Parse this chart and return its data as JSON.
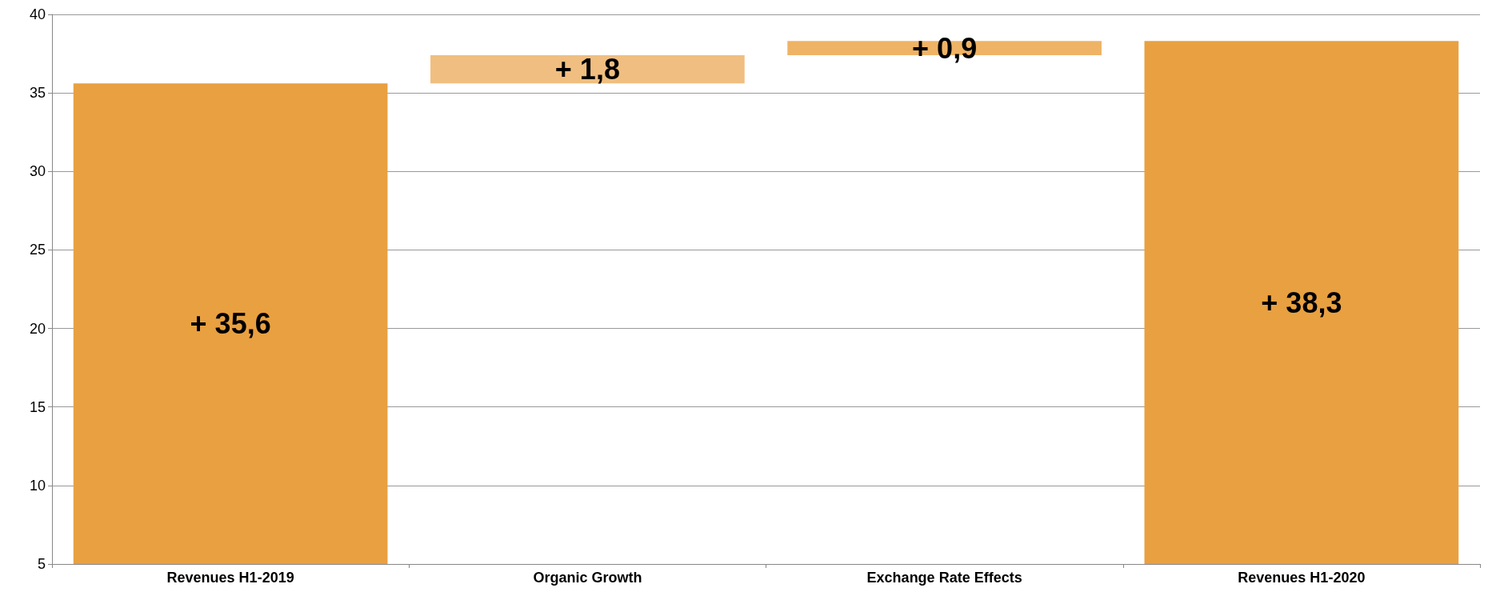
{
  "chart_data": {
    "type": "bar",
    "categories": [
      "Revenues H1-2019",
      "Organic Growth",
      "Exchange Rate Effects",
      "Revenues H1-2020"
    ],
    "values": [
      35.6,
      1.8,
      0.9,
      38.3
    ],
    "base": [
      null,
      35.6,
      37.4,
      null
    ],
    "colors": [
      "#e9a040",
      "#f0be80",
      "#efb366",
      "#e9a040"
    ],
    "value_labels": [
      "+ 35,6",
      "+ 1,8",
      "+ 0,9",
      "+ 38,3"
    ],
    "ylim": [
      5,
      40
    ],
    "yticks": [
      5,
      10,
      15,
      20,
      25,
      30,
      35,
      40
    ],
    "grid": "y"
  }
}
